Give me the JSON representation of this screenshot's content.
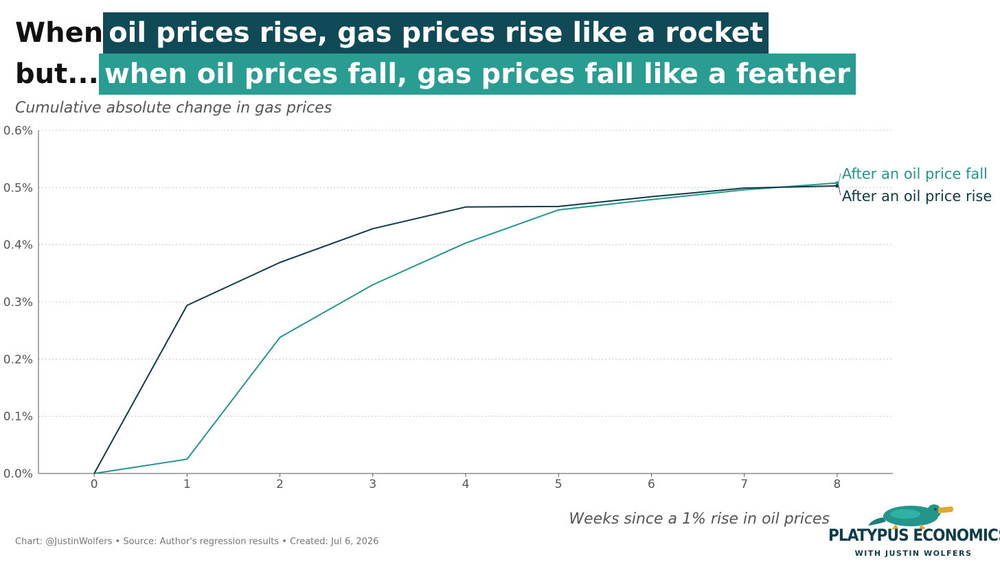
{
  "title": {
    "line1_plain": "When",
    "line1_highlight": "oil prices rise, gas prices rise like a rocket",
    "line2_plain": "but...",
    "line2_highlight": "when oil prices fall, gas prices fall like a feather"
  },
  "subtitle": "Cumulative absolute change in gas prices",
  "x_axis_title": "Weeks since a 1% rise in oil prices",
  "footer": "Chart: @JustinWolfers • Source: Author's regression results • Created: Jul 6, 2026",
  "logo": {
    "text": "PLATYPUS ECONOMICS",
    "subtext": "WITH JUSTIN WOLFERS",
    "icon": "platypus-icon"
  },
  "colors": {
    "rise": "#0d3a47",
    "fall": "#23958b",
    "highlight_dark": "#0f4a56",
    "highlight_teal": "#2a9d92"
  },
  "chart_data": {
    "type": "line",
    "x": [
      0,
      1,
      2,
      3,
      4,
      5,
      6,
      7,
      8
    ],
    "x_tick_labels": [
      "0",
      "1",
      "2",
      "3",
      "4",
      "5",
      "6",
      "7",
      "8"
    ],
    "y_tick_labels": [
      "0.0%",
      "0.1%",
      "0.2%",
      "0.3%",
      "0.4%",
      "0.5%",
      "0.6%"
    ],
    "y_ticks": [
      0,
      0.1,
      0.2,
      0.3,
      0.4,
      0.5,
      0.6
    ],
    "xlim": [
      -0.6,
      8.6
    ],
    "ylim": [
      0,
      0.6
    ],
    "grid": "horizontal dotted",
    "series": [
      {
        "name": "After an oil price fall",
        "color": "#23958b",
        "values": [
          0,
          0.025,
          0.238,
          0.33,
          0.403,
          0.461,
          0.479,
          0.496,
          0.508
        ]
      },
      {
        "name": "After an oil price rise",
        "color": "#0d3a47",
        "values": [
          0,
          0.294,
          0.369,
          0.428,
          0.466,
          0.467,
          0.484,
          0.499,
          0.503
        ]
      }
    ]
  }
}
